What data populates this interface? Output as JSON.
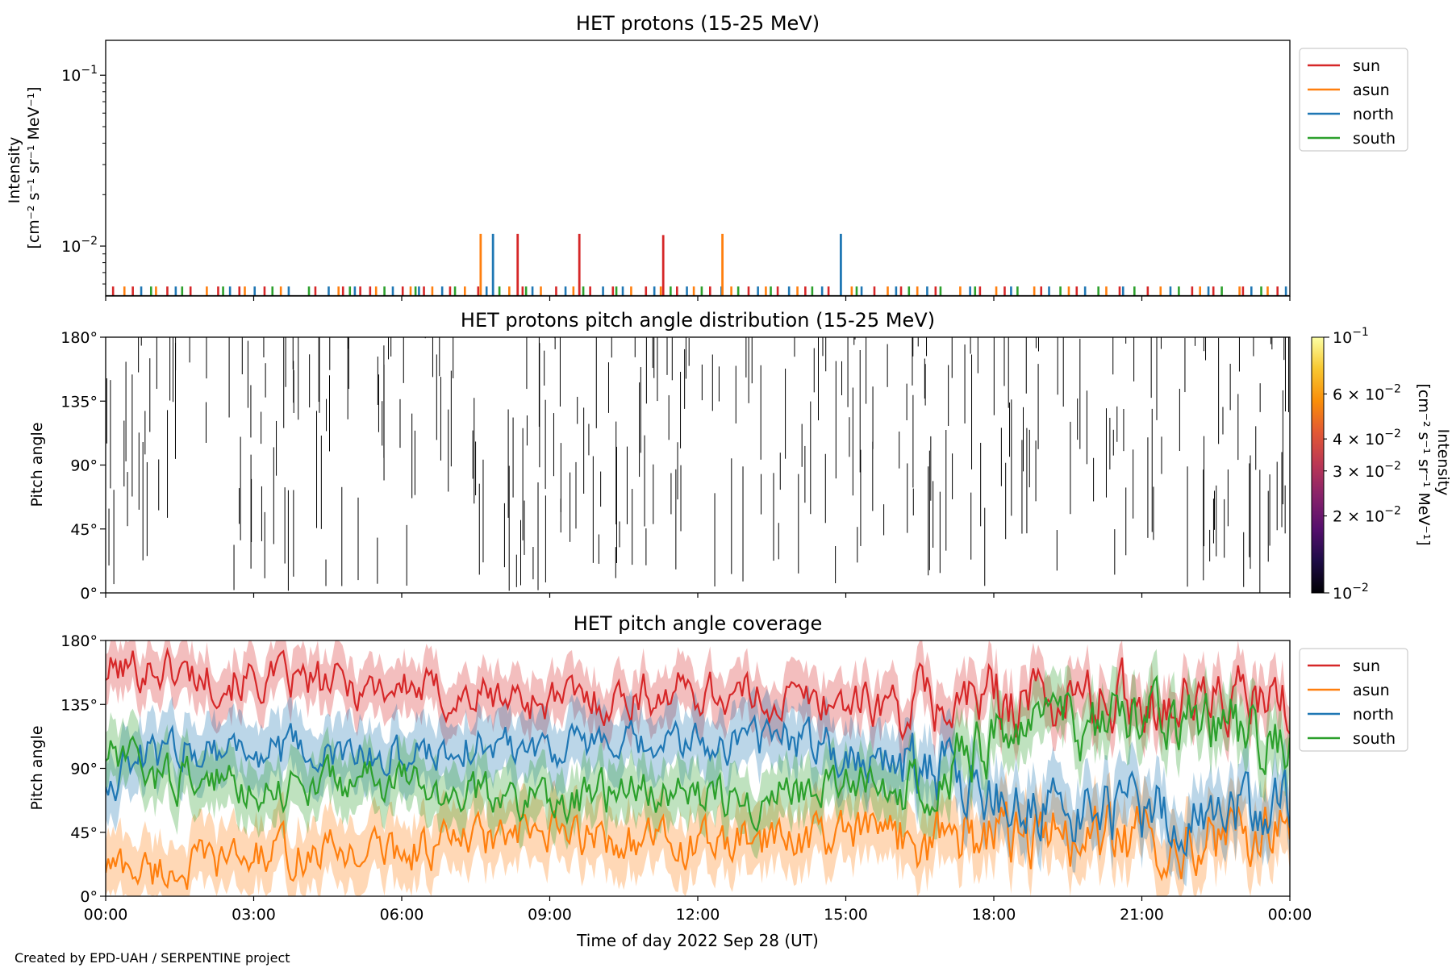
{
  "figure": {
    "xlabel": "Time of day 2022 Sep 28 (UT)",
    "xticks": [
      "00:00",
      "03:00",
      "06:00",
      "09:00",
      "12:00",
      "15:00",
      "18:00",
      "21:00",
      "00:00"
    ],
    "xlim_hours": [
      0,
      24
    ],
    "credit": "Created by EPD-UAH / SERPENTINE project"
  },
  "colors": {
    "sun": "#d62728",
    "asun": "#ff7f0e",
    "north": "#1f77b4",
    "south": "#2ca02c"
  },
  "chart_data": [
    {
      "id": "intensity",
      "type": "line",
      "title": "HET protons (15-25 MeV)",
      "ylabel": [
        "Intensity",
        "[cm⁻² s⁻¹ sr⁻¹ MeV⁻¹]"
      ],
      "yscale": "log",
      "ylim": [
        0.0051,
        0.16
      ],
      "yticks": [
        {
          "value": 0.1,
          "base": "10",
          "exp": "−1"
        },
        {
          "value": 0.01,
          "base": "10",
          "exp": "−2"
        }
      ],
      "baseline": 0.0051,
      "spike_level": 0.0058,
      "legend": {
        "placement": "right",
        "entries": [
          "sun",
          "asun",
          "north",
          "south"
        ]
      },
      "spikes": {
        "sun": [
          0.15,
          0.55,
          1.25,
          1.72,
          2.28,
          2.71,
          3.22,
          4.25,
          4.81,
          5.16,
          5.36,
          6.02,
          6.45,
          6.98,
          7.55,
          8.45,
          9.13,
          9.82,
          10.28,
          10.95,
          11.58,
          12.25,
          13.03,
          13.62,
          14.18,
          14.65,
          15.58,
          16.12,
          16.82,
          17.72,
          18.22,
          18.96,
          19.68,
          20.55,
          21.12,
          22.02,
          22.45,
          23.05,
          23.75
        ],
        "asun": [
          0.38,
          1.02,
          2.05,
          2.82,
          3.55,
          4.72,
          5.48,
          6.18,
          6.62,
          7.28,
          8.18,
          8.82,
          9.48,
          10.65,
          11.25,
          11.92,
          12.68,
          13.38,
          14.02,
          15.12,
          15.85,
          16.45,
          17.32,
          18.05,
          18.82,
          19.52,
          20.28,
          21.38,
          22.18,
          22.98,
          23.55
        ],
        "north": [
          0.72,
          1.42,
          2.52,
          3.02,
          3.71,
          4.52,
          5.05,
          5.82,
          6.35,
          6.82,
          7.72,
          8.65,
          9.32,
          10.08,
          10.48,
          11.12,
          11.78,
          12.48,
          13.22,
          13.85,
          14.52,
          15.32,
          16.02,
          16.65,
          17.52,
          18.35,
          19.12,
          19.85,
          20.62,
          21.58,
          22.35,
          23.22,
          23.92
        ],
        "south": [
          0.92,
          1.55,
          2.38,
          3.38,
          4.12,
          4.95,
          5.65,
          6.28,
          7.08,
          7.98,
          8.52,
          9.68,
          10.35,
          11.45,
          12.08,
          12.82,
          13.48,
          14.32,
          15.22,
          16.28,
          16.92,
          17.62,
          18.48,
          19.35,
          20.12,
          20.85,
          21.75,
          22.62,
          23.42
        ]
      },
      "peaks": [
        {
          "series": "asun",
          "time": 7.6,
          "value": 0.0118
        },
        {
          "series": "north",
          "time": 7.85,
          "value": 0.0118
        },
        {
          "series": "sun",
          "time": 8.35,
          "value": 0.0118
        },
        {
          "series": "sun",
          "time": 9.6,
          "value": 0.0118
        },
        {
          "series": "sun",
          "time": 11.3,
          "value": 0.0116
        },
        {
          "series": "asun",
          "time": 12.5,
          "value": 0.0118
        },
        {
          "series": "north",
          "time": 14.9,
          "value": 0.0118
        }
      ]
    },
    {
      "id": "pad",
      "type": "heatmap",
      "title": "HET protons pitch angle distribution (15-25 MeV)",
      "ylabel": "Pitch angle",
      "ylim": [
        0,
        180
      ],
      "yticks": [
        "0°",
        "45°",
        "90°",
        "135°",
        "180°"
      ],
      "colorbar": {
        "label": [
          "Intensity",
          "[cm⁻² s⁻¹ sr⁻¹ MeV⁻¹]"
        ],
        "scale": "log",
        "range": [
          0.01,
          0.1
        ],
        "colormap": "inferno",
        "ticks": [
          {
            "value": 0.1,
            "label": "10",
            "exp": "−1",
            "major": true
          },
          {
            "value": 0.06,
            "label": "6 × 10",
            "exp": "−2",
            "major": false
          },
          {
            "value": 0.04,
            "label": "4 × 10",
            "exp": "−2",
            "major": false
          },
          {
            "value": 0.03,
            "label": "3 × 10",
            "exp": "−2",
            "major": false
          },
          {
            "value": 0.02,
            "label": "2 × 10",
            "exp": "−2",
            "major": false
          },
          {
            "value": 0.01,
            "label": "10",
            "exp": "−2",
            "major": true
          }
        ]
      },
      "event_count": 300
    },
    {
      "id": "coverage",
      "type": "line",
      "title": "HET pitch angle coverage",
      "ylabel": "Pitch angle",
      "ylim": [
        0,
        180
      ],
      "yticks": [
        "0°",
        "45°",
        "90°",
        "135°",
        "180°"
      ],
      "legend": {
        "placement": "right",
        "entries": [
          "sun",
          "asun",
          "north",
          "south"
        ]
      },
      "series": [
        {
          "name": "sun",
          "halfwidth": 18,
          "anchors": [
            [
              0,
              158
            ],
            [
              1,
              162
            ],
            [
              2,
              155
            ],
            [
              3,
              152
            ],
            [
              4,
              150
            ],
            [
              5,
              148
            ],
            [
              6,
              148
            ],
            [
              7,
              140
            ],
            [
              8,
              140
            ],
            [
              9,
              138
            ],
            [
              10,
              138
            ],
            [
              11,
              142
            ],
            [
              12,
              145
            ],
            [
              13,
              140
            ],
            [
              14,
              138
            ],
            [
              15,
              138
            ],
            [
              16,
              135
            ],
            [
              17,
              135
            ],
            [
              18,
              140
            ],
            [
              19,
              140
            ],
            [
              20,
              138
            ],
            [
              21,
              140
            ],
            [
              22,
              138
            ],
            [
              23,
              138
            ],
            [
              24,
              130
            ]
          ]
        },
        {
          "name": "asun",
          "halfwidth": 22,
          "anchors": [
            [
              0,
              22
            ],
            [
              1,
              18
            ],
            [
              2,
              22
            ],
            [
              3,
              28
            ],
            [
              4,
              30
            ],
            [
              5,
              32
            ],
            [
              6,
              32
            ],
            [
              7,
              38
            ],
            [
              8,
              40
            ],
            [
              9,
              42
            ],
            [
              10,
              42
            ],
            [
              11,
              38
            ],
            [
              12,
              35
            ],
            [
              13,
              38
            ],
            [
              14,
              42
            ],
            [
              15,
              42
            ],
            [
              16,
              45
            ],
            [
              17,
              45
            ],
            [
              18,
              42
            ],
            [
              19,
              40
            ],
            [
              20,
              42
            ],
            [
              21,
              40
            ],
            [
              22,
              42
            ],
            [
              23,
              42
            ],
            [
              24,
              50
            ]
          ]
        },
        {
          "name": "north",
          "halfwidth": 22,
          "anchors": [
            [
              0,
              82
            ],
            [
              1,
              100
            ],
            [
              2,
              108
            ],
            [
              3,
              102
            ],
            [
              4,
              100
            ],
            [
              5,
              96
            ],
            [
              6,
              100
            ],
            [
              7,
              105
            ],
            [
              8,
              108
            ],
            [
              9,
              108
            ],
            [
              10,
              105
            ],
            [
              11,
              102
            ],
            [
              12,
              108
            ],
            [
              13,
              112
            ],
            [
              14,
              110
            ],
            [
              15,
              102
            ],
            [
              16,
              96
            ],
            [
              17,
              88
            ],
            [
              18,
              70
            ],
            [
              19,
              60
            ],
            [
              20,
              58
            ],
            [
              21,
              58
            ],
            [
              22,
              55
            ],
            [
              23,
              58
            ],
            [
              24,
              70
            ]
          ]
        },
        {
          "name": "south",
          "halfwidth": 20,
          "anchors": [
            [
              0,
              100
            ],
            [
              1,
              85
            ],
            [
              2,
              82
            ],
            [
              3,
              78
            ],
            [
              4,
              78
            ],
            [
              5,
              82
            ],
            [
              6,
              80
            ],
            [
              7,
              72
            ],
            [
              8,
              70
            ],
            [
              9,
              70
            ],
            [
              10,
              70
            ],
            [
              11,
              75
            ],
            [
              12,
              72
            ],
            [
              13,
              70
            ],
            [
              14,
              72
            ],
            [
              15,
              78
            ],
            [
              16,
              84
            ],
            [
              17,
              92
            ],
            [
              18,
              110
            ],
            [
              19,
              118
            ],
            [
              20,
              120
            ],
            [
              21,
              120
            ],
            [
              22,
              122
            ],
            [
              23,
              120
            ],
            [
              24,
              100
            ]
          ]
        }
      ]
    }
  ]
}
